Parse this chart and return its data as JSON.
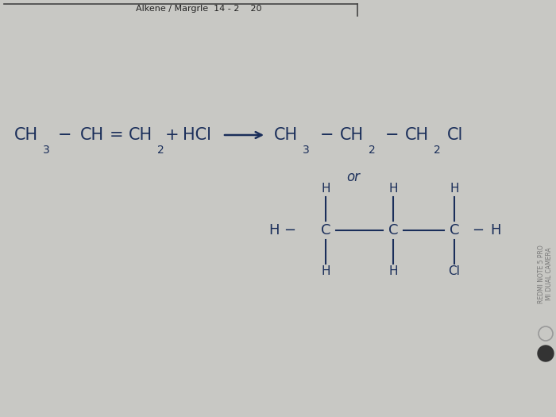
{
  "bg_color": "#c8c8c4",
  "text_color": "#1a2e5a",
  "font_size_main": 15,
  "font_size_sub": 10,
  "font_size_struct": 13,
  "font_size_or": 12,
  "font_family": "DejaVu Sans",
  "header_text": "Alkene / Margrle  14 - 2    20",
  "watermark_line1": "REDMI NOTE 5 PRO",
  "watermark_line2": "MI DUAL CAMERA"
}
